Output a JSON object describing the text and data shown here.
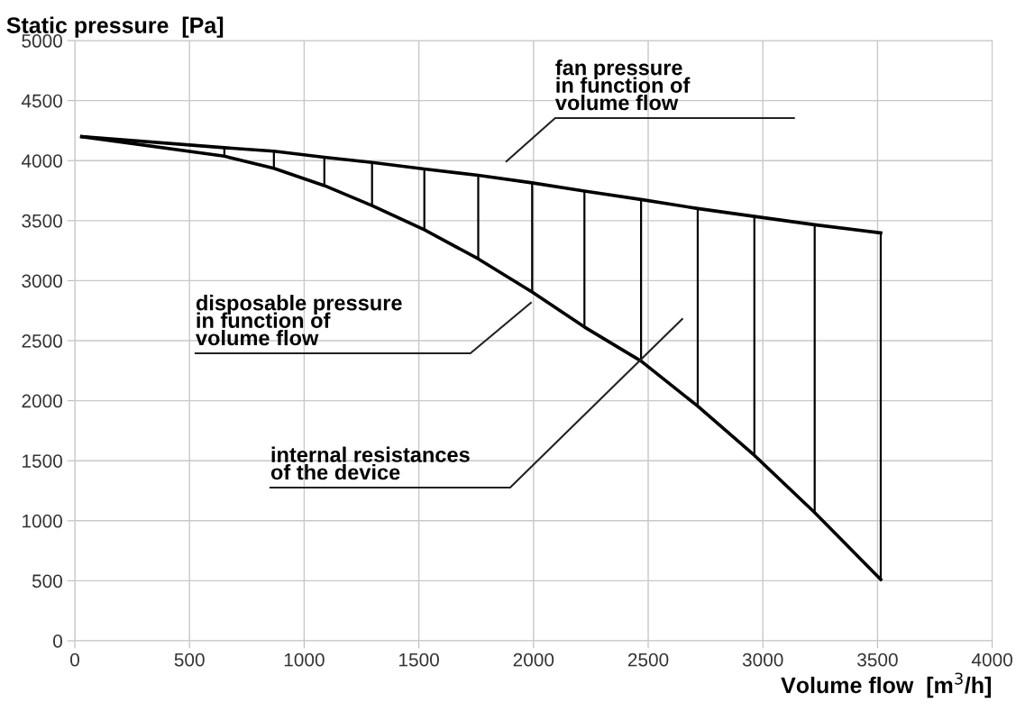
{
  "chart_data": {
    "type": "line",
    "xlabel": "Volume flow  [m$^{3}$/h]",
    "ylabel": "Static pressure  [Pa]",
    "xlim": [
      0,
      4000
    ],
    "ylim": [
      0,
      5000
    ],
    "xticks": [
      0,
      500,
      1000,
      1500,
      2000,
      2500,
      3000,
      3500,
      4000
    ],
    "yticks": [
      0,
      500,
      1000,
      1500,
      2000,
      2500,
      3000,
      3500,
      4000,
      4500,
      5000
    ],
    "grid": true,
    "marker": "none",
    "line_style": "solid",
    "x": [
      30,
      652,
      868,
      1088,
      1296,
      1524,
      1759,
      1994,
      2222,
      2469,
      2716,
      2963,
      3226,
      3514
    ],
    "series": [
      {
        "color": "#000000",
        "values": [
          4200,
          4108,
          4079,
          4028,
          3985,
          3930,
          3878,
          3815,
          3746,
          3676,
          3601,
          3535,
          3466,
          3398
        ]
      },
      {
        "color": "#000000",
        "values": [
          4200,
          4037,
          3936,
          3792,
          3625,
          3424,
          3182,
          2906,
          2614,
          2330,
          1955,
          1545,
          1068,
          511
        ]
      }
    ],
    "annotations": [
      "fan pressure\nin function of\nvolume flow",
      "disposable pressure\nin function of\nvolume flow",
      "internal resistances\nof the device"
    ]
  }
}
